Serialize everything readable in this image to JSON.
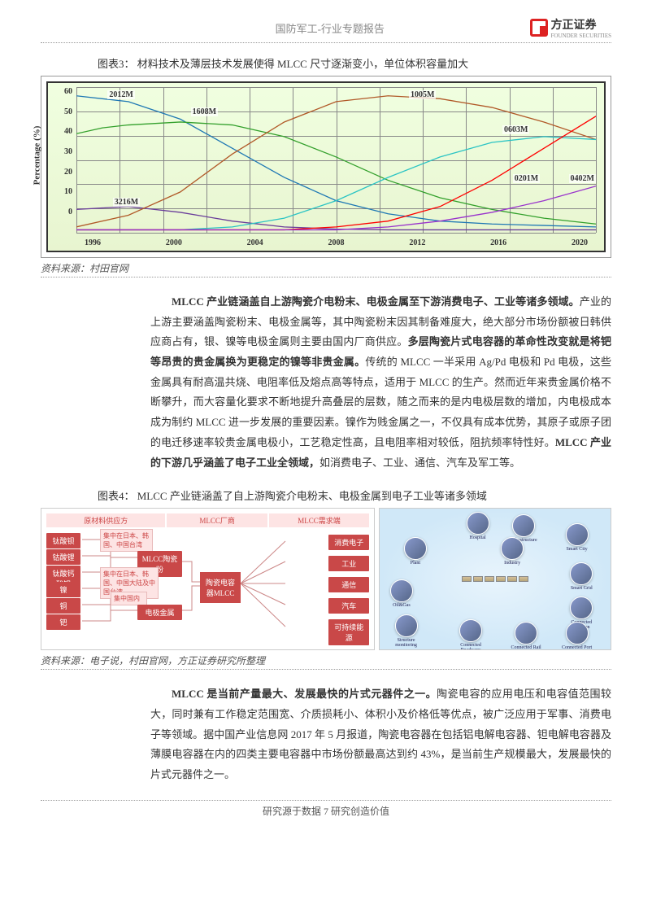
{
  "header": {
    "title": "国防军工-行业专题报告",
    "brand_cn": "方正证券",
    "brand_en": "FOUNDER SECURITIES"
  },
  "figure3": {
    "title": "图表3：  材料技术及薄层技术发展使得 MLCC 尺寸逐渐变小，单位体积容量加大",
    "ylabel": "Percentage (%)",
    "yticks": [
      "60",
      "50",
      "40",
      "30",
      "20",
      "10",
      "0"
    ],
    "xticks": [
      "1996",
      "2000",
      "2004",
      "2008",
      "2012",
      "2016",
      "2020"
    ],
    "labels": {
      "s2012M": "2012M",
      "s1608M": "1608M",
      "s1005M": "1005M",
      "s0603M": "0603M",
      "s0201M": "0201M",
      "s0402M": "0402M",
      "s3216M": "3216M"
    },
    "series": {
      "s3216M": {
        "color": "#6a3d9a",
        "points": [
          [
            0,
            16
          ],
          [
            10,
            18
          ],
          [
            20,
            14
          ],
          [
            30,
            8
          ],
          [
            40,
            4
          ],
          [
            50,
            2.5
          ],
          [
            60,
            2
          ],
          [
            70,
            2
          ],
          [
            80,
            2
          ],
          [
            90,
            2
          ],
          [
            100,
            2
          ]
        ]
      },
      "s2012M": {
        "color": "#1f78b4",
        "points": [
          [
            0,
            94
          ],
          [
            10,
            90
          ],
          [
            20,
            78
          ],
          [
            30,
            58
          ],
          [
            40,
            38
          ],
          [
            50,
            22
          ],
          [
            60,
            13
          ],
          [
            70,
            8
          ],
          [
            80,
            6
          ],
          [
            90,
            5
          ],
          [
            100,
            4
          ]
        ]
      },
      "s1608M": {
        "color": "#33a02c",
        "points": [
          [
            0,
            68
          ],
          [
            5,
            72
          ],
          [
            10,
            74
          ],
          [
            20,
            76
          ],
          [
            30,
            74
          ],
          [
            40,
            66
          ],
          [
            50,
            52
          ],
          [
            60,
            36
          ],
          [
            70,
            24
          ],
          [
            80,
            16
          ],
          [
            90,
            10
          ],
          [
            100,
            6
          ]
        ]
      },
      "s1005M": {
        "color": "#b15928",
        "points": [
          [
            0,
            4
          ],
          [
            10,
            12
          ],
          [
            20,
            28
          ],
          [
            30,
            54
          ],
          [
            40,
            76
          ],
          [
            50,
            90
          ],
          [
            60,
            94
          ],
          [
            70,
            92
          ],
          [
            80,
            86
          ],
          [
            90,
            76
          ],
          [
            100,
            64
          ]
        ]
      },
      "s0603M": {
        "color": "#2bc4c4",
        "points": [
          [
            0,
            2
          ],
          [
            20,
            2
          ],
          [
            30,
            4
          ],
          [
            40,
            10
          ],
          [
            50,
            22
          ],
          [
            60,
            38
          ],
          [
            70,
            52
          ],
          [
            80,
            62
          ],
          [
            90,
            66
          ],
          [
            100,
            64
          ]
        ]
      },
      "s0402M": {
        "color": "#ff0000",
        "points": [
          [
            0,
            2
          ],
          [
            30,
            2
          ],
          [
            40,
            2
          ],
          [
            50,
            4
          ],
          [
            60,
            8
          ],
          [
            70,
            18
          ],
          [
            80,
            36
          ],
          [
            90,
            58
          ],
          [
            100,
            80
          ]
        ]
      },
      "s0201M": {
        "color": "#9933cc",
        "points": [
          [
            0,
            2
          ],
          [
            50,
            2
          ],
          [
            60,
            4
          ],
          [
            70,
            8
          ],
          [
            80,
            14
          ],
          [
            90,
            22
          ],
          [
            100,
            32
          ]
        ]
      }
    },
    "source": "资料来源：村田官网"
  },
  "paragraph1": {
    "bold1": "MLCC 产业链涵盖自上游陶瓷介电粉末、电极金属至下游消费电子、工业等诸多领域。",
    "text1": "产业的上游主要涵盖陶瓷粉末、电极金属等，其中陶瓷粉末因其制备难度大，绝大部分市场份额被日韩供应商占有，银、镍等电极金属则主要由国内厂商供应。",
    "bold2": "多层陶瓷片式电容器的革命性改变就是将钯等昂贵的贵金属换为更稳定的镍等非贵金属。",
    "text2": "传统的 MLCC 一半采用 Ag/Pd 电极和 Pd 电极，这些金属具有耐高温共烧、电阻率低及熔点高等特点，适用于 MLCC 的生产。然而近年来贵金属价格不断攀升，而大容量化要求不断地提升高叠层的层数，随之而来的是内电极层数的增加，内电极成本成为制约 MLCC 进一步发展的重要因素。镍作为贱金属之一，不仅具有成本优势，其原子或原子团的电迁移速率较贵金属电极小，工艺稳定性高，且电阻率相对较低，阻抗频率特性好。",
    "bold3": "MLCC 产业的下游几乎涵盖了电子工业全领域，",
    "text3": "如消费电子、工业、通信、汽车及军工等。"
  },
  "figure4": {
    "title": "图表4：  MLCC 产业链涵盖了自上游陶瓷介电粉末、电极金属到电子工业等诸多领域",
    "headers": {
      "h1": "原材料供应方",
      "h2": "MLCC厂商",
      "h3": "MLCC需求端"
    },
    "suppliers": [
      "钛酸钡",
      "钴酸锂",
      "钛酸钙酸钡",
      "镍",
      "铜",
      "钯"
    ],
    "notes": {
      "n1": "集中在日本、韩国、中国台湾",
      "n2": "集中在日本、韩国、中国大陆及中国台湾",
      "n3": "集中国内"
    },
    "mids": {
      "m1": "MLCC陶瓷粉",
      "m2": "陶瓷电容器MLCC",
      "m3": "电极金属"
    },
    "demands": [
      "消费电子",
      "工业",
      "通信",
      "汽车",
      "可持续能源"
    ],
    "apps": [
      "Hospital",
      "Infrastructure",
      "Smart City",
      "Plant",
      "Industry",
      "Smart Grid",
      "Oil&Gas",
      "Connected Aviation",
      "Structure monitoring",
      "Connected Roadways",
      "Connected Rail",
      "Connected Port"
    ],
    "source": "资料来源：电子说，村田官网，方正证券研究所整理"
  },
  "paragraph2": {
    "bold1": "MLCC 是当前产量最大、发展最快的片式元器件之一。",
    "text1": "陶瓷电容的应用电压和电容值范围较大，同时兼有工作稳定范围宽、介质损耗小、体积小及价格低等优点，被广泛应用于军事、消费电子等领域。据中国产业信息网 2017 年 5 月报道，陶瓷电容器在包括铝电解电容器、钽电解电容器及薄膜电容器在内的四类主要电容器中市场份额最高达到约 43%，是当前生产规模最大，发展最快的片式元器件之一。"
  },
  "footer": {
    "text": "研究源于数据 7 研究创造价值"
  }
}
